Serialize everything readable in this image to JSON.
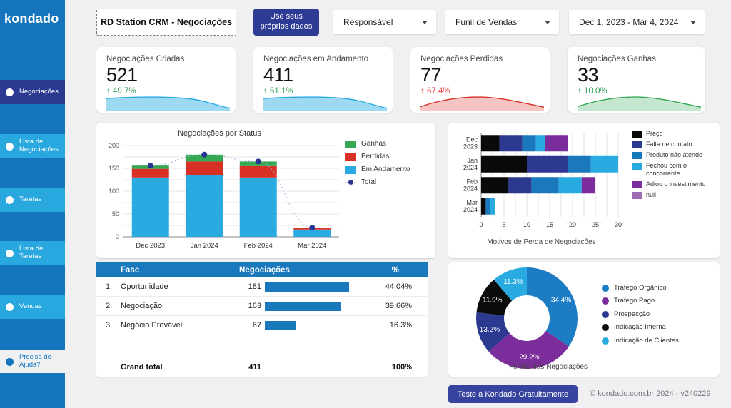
{
  "sidebar": {
    "logo": "kondado",
    "items": [
      {
        "label": "Negociações",
        "state": "active"
      },
      {
        "label": "Lista de Negociações",
        "state": "normal"
      },
      {
        "label": "Tarefas",
        "state": "normal"
      },
      {
        "label": "Lista de Tarefas",
        "state": "normal"
      },
      {
        "label": "Vendas",
        "state": "normal"
      },
      {
        "label": "Precisa de Ajuda?",
        "state": "help"
      }
    ]
  },
  "topbar": {
    "title": "RD Station CRM - Negociações",
    "own_data_button": "Use seus próprios dados",
    "filters": [
      {
        "label": "Responsável"
      },
      {
        "label": "Funil de Vendas"
      },
      {
        "label": "Dec 1, 2023 - Mar 4, 2024"
      }
    ]
  },
  "kpis": [
    {
      "label": "Negociações Criadas",
      "value": "521",
      "delta_arrow": "↑",
      "delta": "49.7%",
      "delta_color": "#2f9e4f",
      "spark_color": "#29abe2",
      "spark": "plateau"
    },
    {
      "label": "Negociações em Andamento",
      "value": "411",
      "delta_arrow": "↑",
      "delta": "51.1%",
      "delta_color": "#2f9e4f",
      "spark_color": "#29abe2",
      "spark": "plateau"
    },
    {
      "label": "Negociações Perdidas",
      "value": "77",
      "delta_arrow": "↑",
      "delta": "67.4%",
      "delta_color": "#e54338",
      "spark_color": "#d93025",
      "spark": "hump"
    },
    {
      "label": "Negociações Ganhas",
      "value": "33",
      "delta_arrow": "↑",
      "delta": "10.0%",
      "delta_color": "#2f9e4f",
      "spark_color": "#34a853",
      "spark": "hump"
    }
  ],
  "chart_data": [
    {
      "id": "status",
      "type": "bar",
      "stacked": true,
      "title": "Negociações por Status",
      "categories": [
        "Dec 2023",
        "Jan 2024",
        "Feb 2024",
        "Mar 2024"
      ],
      "series": [
        {
          "name": "Em Andamento",
          "color": "#29abe2",
          "values": [
            130,
            135,
            130,
            16
          ]
        },
        {
          "name": "Perdidas",
          "color": "#d93025",
          "values": [
            19,
            30,
            25,
            3
          ]
        },
        {
          "name": "Ganhas",
          "color": "#34a853",
          "values": [
            7,
            15,
            10,
            1
          ]
        }
      ],
      "line_series": {
        "name": "Total",
        "color": "#283593",
        "values": [
          156,
          180,
          165,
          20
        ]
      },
      "ylim": [
        0,
        200
      ],
      "yticks": [
        0,
        50,
        100,
        150,
        200
      ],
      "grid": true,
      "legend_position": "right"
    },
    {
      "id": "motivos",
      "type": "bar",
      "orientation": "horizontal",
      "stacked": true,
      "title": "Motivos de Perda de Negociações",
      "categories": [
        "Dec 2023",
        "Jan 2024",
        "Feb 2024",
        "Mar 2024"
      ],
      "series": [
        {
          "name": "Preço",
          "color": "#0a0a0a",
          "values": [
            4,
            10,
            6,
            1
          ]
        },
        {
          "name": "Falta de contato",
          "color": "#2b3990",
          "values": [
            5,
            9,
            5,
            0
          ]
        },
        {
          "name": "Produto não atende",
          "color": "#1a78bc",
          "values": [
            3,
            5,
            6,
            1
          ]
        },
        {
          "name": "Fechou com o concorrente",
          "color": "#29abe2",
          "values": [
            2,
            6,
            5,
            1
          ]
        },
        {
          "name": "Adiou o investimento",
          "color": "#7b2d9b",
          "values": [
            5,
            0,
            3,
            0
          ]
        },
        {
          "name": "null",
          "color": "#9d6cb0",
          "values": [
            0,
            0,
            0,
            0
          ]
        }
      ],
      "xlim": [
        0,
        30
      ],
      "xticks": [
        0,
        5,
        10,
        15,
        20,
        25,
        30
      ],
      "grid": true,
      "legend_position": "right"
    },
    {
      "id": "fases",
      "type": "table",
      "columns": [
        "Fase",
        "Negociações",
        "%"
      ],
      "rows": [
        {
          "index": "1.",
          "fase": "Oportunidade",
          "negociacoes": "181",
          "pct": "44.04%"
        },
        {
          "index": "2.",
          "fase": "Negociação",
          "negociacoes": "163",
          "pct": "39.66%"
        },
        {
          "index": "3.",
          "fase": "Negócio Provável",
          "negociacoes": "67",
          "pct": "16.3%"
        }
      ],
      "grand_total": {
        "label": "Grand total",
        "negociacoes": "411",
        "pct": "100%"
      },
      "bar_color": "#1a78bc",
      "bar_max": 181
    },
    {
      "id": "fontes",
      "type": "pie",
      "donut": true,
      "title": "Fontes das Negociações",
      "labels": [
        "Tráfego Orgânico",
        "Tráfego Pago",
        "Prospecção",
        "Indicação Interna",
        "Indicação de Clientes"
      ],
      "values": [
        34.4,
        29.2,
        13.2,
        11.9,
        11.3
      ],
      "colors": [
        "#1d7dc4",
        "#7b2d9b",
        "#2b3990",
        "#0b0b0b",
        "#29abe2"
      ],
      "legend_position": "right"
    }
  ],
  "footer": {
    "cta_button": "Teste a Kondado Gratuitamente",
    "copyright": "© kondado.com.br 2024 - v240229"
  }
}
